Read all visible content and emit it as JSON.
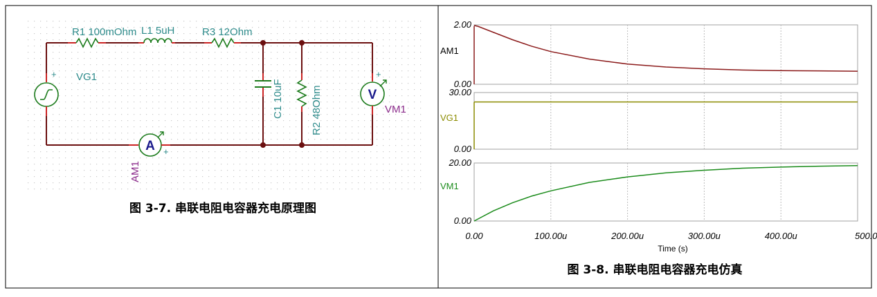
{
  "schematic": {
    "r1_label": "R1 100mOhm",
    "l1_label": "L1 5uH",
    "r3_label": "R3 12Ohm",
    "vg1_label": "VG1",
    "c1_label": "C1 10uF",
    "r2_label": "R2 48Ohm",
    "vm1_label": "VM1",
    "am1_label": "AM1",
    "ammeter_symbol": "A",
    "voltmeter_symbol": "V",
    "plus": "+",
    "caption": "图 3-7. 串联电阻电容器充电原理图",
    "colors": {
      "wire": "#6b0f0f",
      "component_label": "#2e8b8b",
      "instrument_label": "#8b2b8b",
      "dots": "#c8c8c8",
      "pin": "#cc2222"
    }
  },
  "simulation": {
    "caption": "图 3-8. 串联电阻电容器充电仿真",
    "xlabel": "Time (s)",
    "x_ticks": [
      "0.00",
      "100.00u",
      "200.00u",
      "300.00u",
      "400.00u",
      "500.0"
    ]
  },
  "chart_data": [
    {
      "type": "line",
      "series": [
        {
          "name": "AM1",
          "color": "#8b1a1a",
          "x": [
            0,
            5,
            25,
            50,
            75,
            100,
            150,
            200,
            250,
            300,
            350,
            400,
            450,
            500
          ],
          "y": [
            1.98,
            1.95,
            1.75,
            1.5,
            1.28,
            1.1,
            0.85,
            0.68,
            0.58,
            0.52,
            0.48,
            0.46,
            0.45,
            0.44
          ]
        }
      ],
      "y_ticks": [
        "2.00",
        "0.00"
      ],
      "ylim": [
        0,
        2
      ],
      "xlim": [
        0,
        500
      ],
      "grid": true
    },
    {
      "type": "line",
      "series": [
        {
          "name": "VG1",
          "color": "#8b8b00",
          "x": [
            0,
            500
          ],
          "y": [
            25,
            25
          ]
        }
      ],
      "y_ticks": [
        "30.00",
        "0.00"
      ],
      "ylim": [
        0,
        30
      ],
      "xlim": [
        0,
        500
      ],
      "grid": true
    },
    {
      "type": "line",
      "series": [
        {
          "name": "VM1",
          "color": "#1a8b1a",
          "x": [
            0,
            25,
            50,
            75,
            100,
            150,
            200,
            250,
            300,
            350,
            400,
            450,
            500
          ],
          "y": [
            0,
            3.5,
            6.3,
            8.6,
            10.4,
            13.3,
            15.2,
            16.6,
            17.5,
            18.2,
            18.6,
            18.9,
            19.1
          ]
        }
      ],
      "y_ticks": [
        "20.00",
        "0.00"
      ],
      "ylim": [
        0,
        20
      ],
      "xlim": [
        0,
        500
      ],
      "grid": true
    }
  ]
}
